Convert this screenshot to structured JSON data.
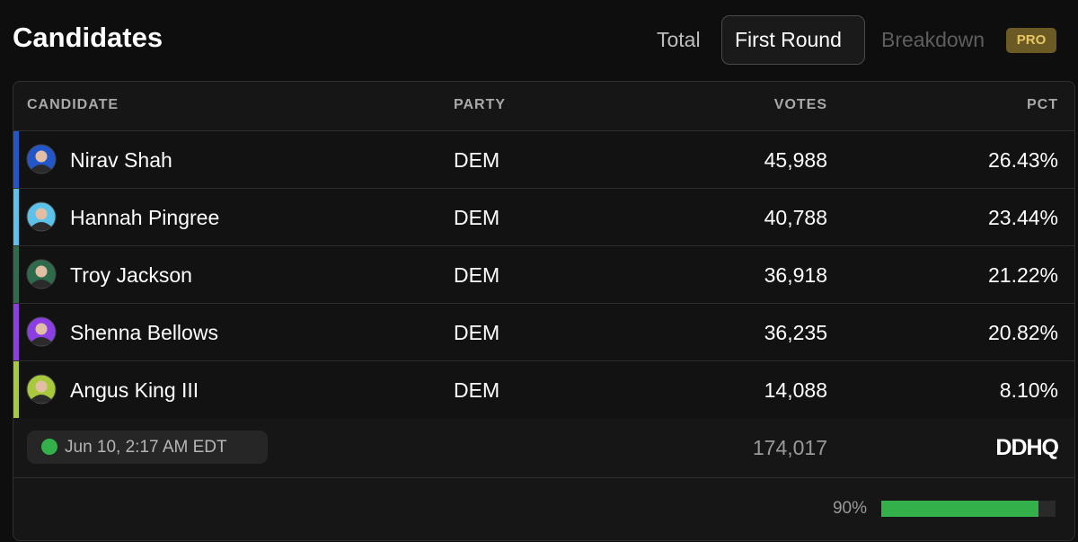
{
  "header": {
    "title": "Candidates",
    "tabs": [
      "Total",
      "First Round",
      "Breakdown"
    ],
    "active_tab": 1,
    "badge": "PRO"
  },
  "table": {
    "columns": [
      "CANDIDATE",
      "PARTY",
      "VOTES",
      "PCT"
    ],
    "rows": [
      {
        "name": "Nirav Shah",
        "party": "DEM",
        "votes": "45,988",
        "pct": "26.43%",
        "color": "#2256c9"
      },
      {
        "name": "Hannah Pingree",
        "party": "DEM",
        "votes": "40,788",
        "pct": "23.44%",
        "color": "#5cc2ea"
      },
      {
        "name": "Troy Jackson",
        "party": "DEM",
        "votes": "36,918",
        "pct": "21.22%",
        "color": "#2e6b4d"
      },
      {
        "name": "Shenna Bellows",
        "party": "DEM",
        "votes": "36,235",
        "pct": "20.82%",
        "color": "#8b3fe2"
      },
      {
        "name": "Angus King III",
        "party": "DEM",
        "votes": "14,088",
        "pct": "8.10%",
        "color": "#a8c93b"
      }
    ]
  },
  "footer": {
    "timestamp": "Jun 10, 2:17 AM EDT",
    "total_votes": "174,017",
    "logo": "DDHQ"
  },
  "progress": {
    "value": 90,
    "label": "90%"
  }
}
